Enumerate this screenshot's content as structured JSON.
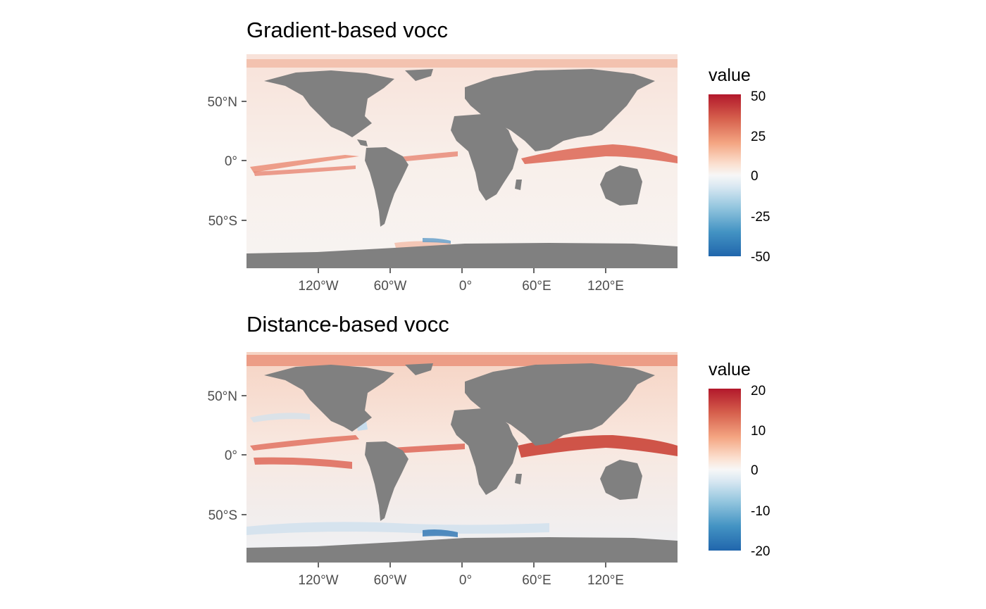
{
  "panels": [
    {
      "title": "Gradient-based vocc",
      "legend": {
        "title": "value",
        "ticks": [
          "50",
          "25",
          "0",
          "-25",
          "-50"
        ],
        "min": -50,
        "max": 50
      },
      "x_ticks": [
        "120°W",
        "60°W",
        "0°",
        "60°E",
        "120°E"
      ],
      "y_ticks": [
        "50°N",
        "0°",
        "50°S"
      ],
      "land_color": "#808080",
      "ocean_color": "#f7f7f7"
    },
    {
      "title": "Distance-based vocc",
      "legend": {
        "title": "value",
        "ticks": [
          "20",
          "10",
          "0",
          "-10",
          "-20"
        ],
        "min": -20,
        "max": 20
      },
      "x_ticks": [
        "120°W",
        "60°W",
        "0°",
        "60°E",
        "120°E"
      ],
      "y_ticks": [
        "50°N",
        "0°",
        "50°S"
      ],
      "land_color": "#808080",
      "ocean_color": "#f7f7f7"
    }
  ],
  "colors": {
    "high": "#b2182b",
    "mid": "#f7f7f7",
    "low": "#2166ac"
  }
}
